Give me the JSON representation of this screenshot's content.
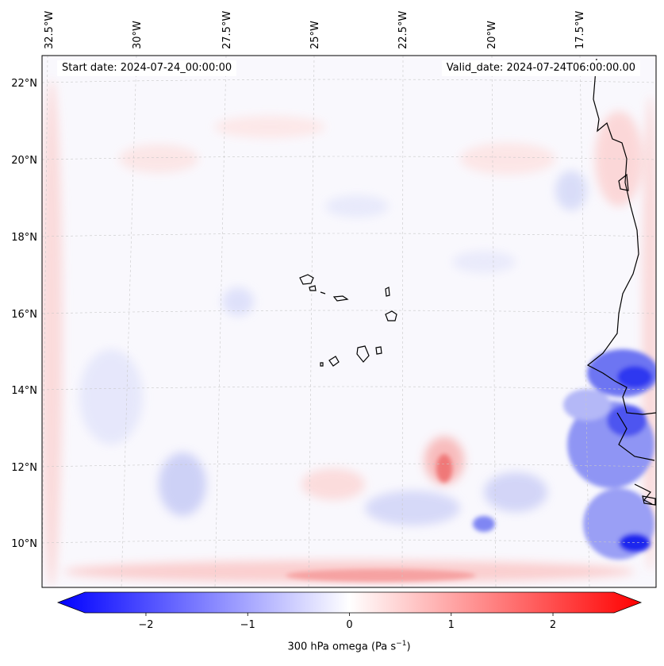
{
  "header": {
    "start_date": "Start date: 2024-07-24_00:00:00",
    "valid_date": "Valid_date: 2024-07-24T06:00:00.00"
  },
  "map": {
    "longitude_labels": [
      "32.5°W",
      "30°W",
      "27.5°W",
      "25°W",
      "22.5°W",
      "20°W",
      "17.5°W"
    ],
    "latitude_labels": [
      "22°N",
      "20°N",
      "18°N",
      "16°N",
      "14°N",
      "12°N",
      "10°N"
    ],
    "field": "300 hPa omega"
  },
  "colorbar": {
    "label_text": "300 hPa omega (Pa s",
    "label_exponent": "−1",
    "label_close": ")",
    "ticks": [
      "−2",
      "−1",
      "0",
      "1",
      "2"
    ],
    "tick_values": [
      -2,
      -1,
      0,
      1,
      2
    ],
    "range": [
      -2.6,
      2.6
    ],
    "colormap": "bwr",
    "negative_color": "#0000ff",
    "zero_color": "#ffffff",
    "positive_color": "#ff0000"
  }
}
